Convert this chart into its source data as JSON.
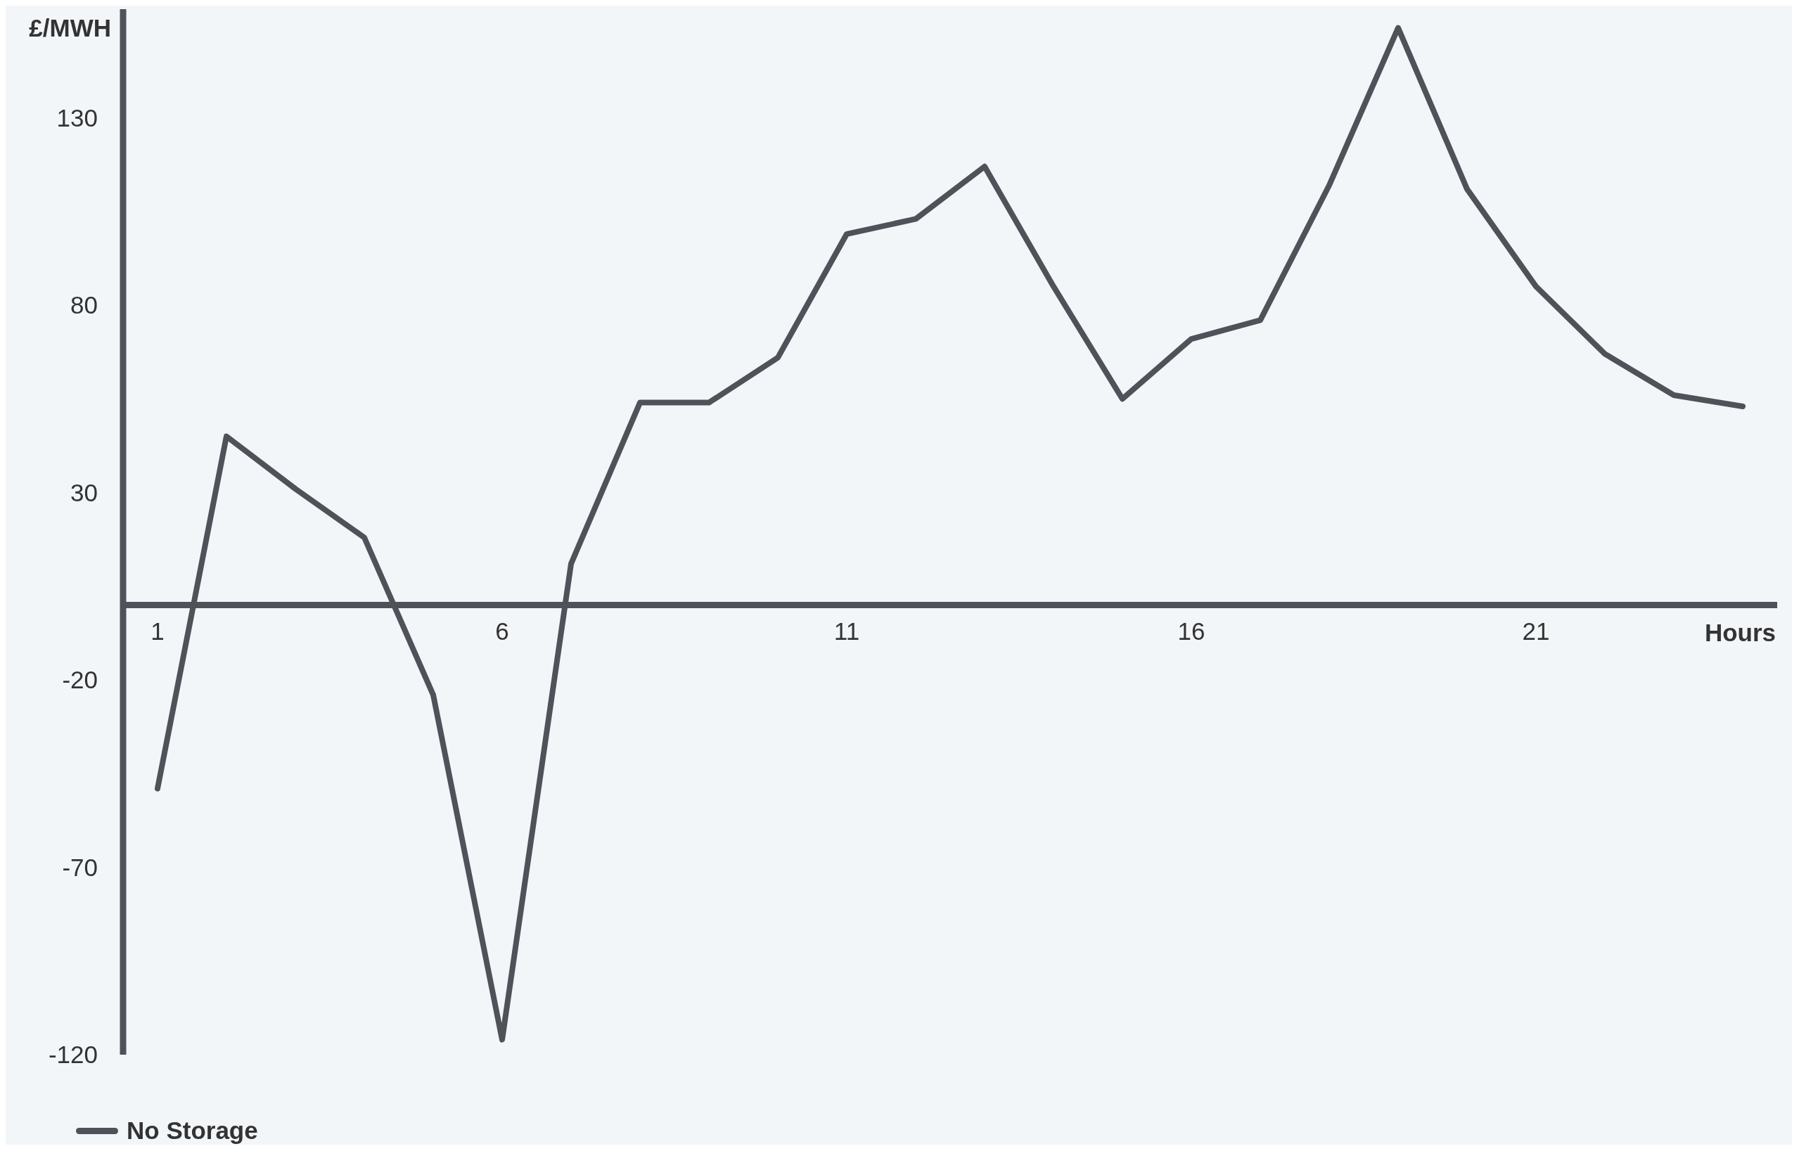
{
  "chart_data": {
    "type": "line",
    "xlabel": "Hours",
    "ylabel": "£/MWH",
    "x": [
      1,
      2,
      3,
      4,
      5,
      6,
      7,
      8,
      9,
      10,
      11,
      12,
      13,
      14,
      15,
      16,
      17,
      18,
      19,
      20,
      21,
      22,
      23,
      24
    ],
    "series": [
      {
        "name": "No Storage",
        "color": "#4f5359",
        "values": [
          -49,
          45,
          31,
          18,
          -24,
          -116,
          11,
          54,
          54,
          66,
          99,
          103,
          117,
          85,
          55,
          71,
          76,
          112,
          154,
          111,
          85,
          67,
          56,
          53
        ]
      }
    ],
    "xlim": [
      0.5,
      24.5
    ],
    "xticks": [
      1,
      6,
      11,
      16,
      21
    ],
    "ylim": [
      -120,
      159
    ],
    "yticks": [
      -120,
      -70,
      -20,
      30,
      80,
      130
    ],
    "legend": "bottom left",
    "marker": "none",
    "line_style": "solid"
  }
}
